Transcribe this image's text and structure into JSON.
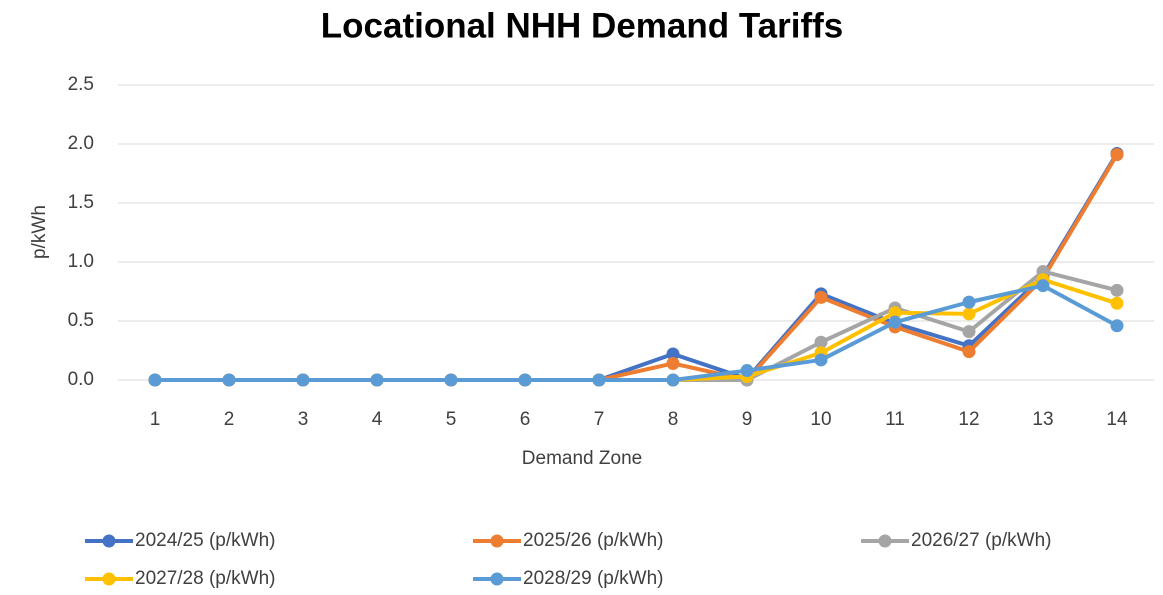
{
  "chart_data": {
    "type": "line",
    "title": "Locational NHH Demand Tariffs",
    "x_label": "Demand Zone",
    "y_label": "p/kWh",
    "categories": [
      "1",
      "2",
      "3",
      "4",
      "5",
      "6",
      "7",
      "8",
      "9",
      "10",
      "11",
      "12",
      "13",
      "14"
    ],
    "series": [
      {
        "name": "2024/25 (p/kWh)",
        "color": "#4472c4",
        "values": [
          0,
          0,
          0,
          0,
          0,
          0,
          0,
          0.22,
          0.01,
          0.73,
          0.48,
          0.29,
          0.88,
          1.92
        ]
      },
      {
        "name": "2025/26 (p/kWh)",
        "color": "#ed7d31",
        "values": [
          0,
          0,
          0,
          0,
          0,
          0,
          0,
          0.14,
          0,
          0.7,
          0.45,
          0.24,
          0.86,
          1.91
        ]
      },
      {
        "name": "2026/27 (p/kWh)",
        "color": "#a5a5a5",
        "values": [
          0,
          0,
          0,
          0,
          0,
          0,
          0,
          0,
          0,
          0.32,
          0.61,
          0.41,
          0.92,
          0.76
        ]
      },
      {
        "name": "2027/28 (p/kWh)",
        "color": "#ffc000",
        "values": [
          0,
          0,
          0,
          0,
          0,
          0,
          0,
          0,
          0.03,
          0.23,
          0.57,
          0.56,
          0.85,
          0.65
        ]
      },
      {
        "name": "2028/29 (p/kWh)",
        "color": "#5b9bd5",
        "values": [
          0,
          0,
          0,
          0,
          0,
          0,
          0,
          0,
          0.08,
          0.17,
          0.49,
          0.66,
          0.8,
          0.46
        ]
      }
    ],
    "ylim": [
      0,
      2.5
    ],
    "yticks": [
      {
        "value": 0,
        "label": "0.0"
      },
      {
        "value": 0.5,
        "label": "0.5"
      },
      {
        "value": 1,
        "label": "1.0"
      },
      {
        "value": 1.5,
        "label": "1.5"
      },
      {
        "value": 2,
        "label": "2.0"
      },
      {
        "value": 2.5,
        "label": "2.5"
      }
    ],
    "grid": true,
    "legend": "bottom"
  }
}
